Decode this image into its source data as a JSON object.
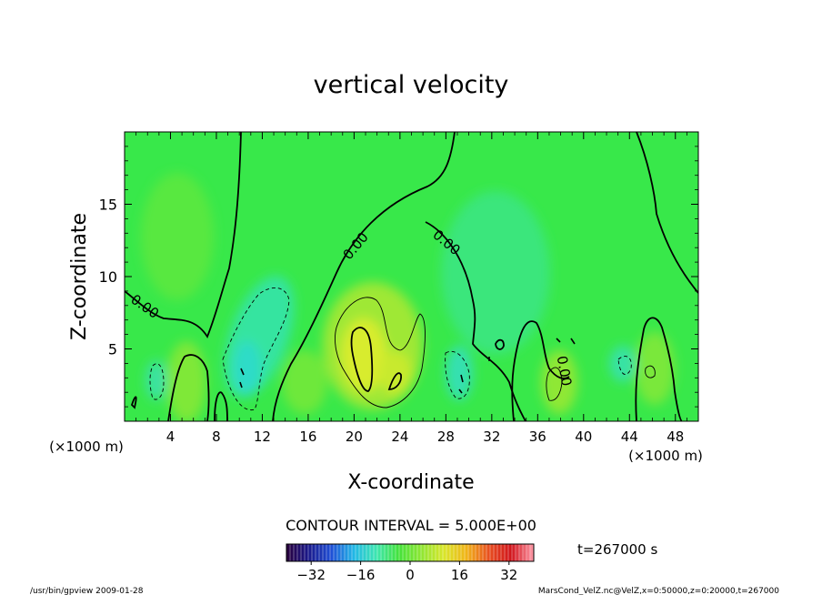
{
  "chart_data": {
    "type": "heatmap",
    "title": "vertical velocity",
    "xlabel": "X-coordinate",
    "ylabel": "Z-coordinate",
    "x_unit": "(×1000 m)",
    "x_ticks": [
      4,
      8,
      12,
      16,
      20,
      24,
      28,
      32,
      36,
      40,
      44,
      48
    ],
    "y_ticks": [
      5,
      10,
      15
    ],
    "xlim": [
      0,
      50
    ],
    "ylim": [
      0,
      20
    ],
    "contour_interval": "CONTOUR INTERVAL = 5.000E+00",
    "contour_label": "0.00",
    "colorbar": {
      "ticks": [
        -32,
        -16,
        0,
        16,
        32
      ],
      "range": [
        -40,
        40
      ],
      "colors": [
        "#2a003c",
        "#1a1a8c",
        "#1f4fd6",
        "#22b8e6",
        "#3ee6b0",
        "#44e23a",
        "#8fe633",
        "#d9e62a",
        "#f0b418",
        "#e85020",
        "#d0141c",
        "#ff9aa8"
      ]
    },
    "time_label": "t=267000 s",
    "footer_left": "/usr/bin/gpview   2009-01-28",
    "footer_right": "MarsCond_VelZ.nc@VelZ,x=0:50000,z=0:20000,t=267000",
    "field_colors": {
      "background": "#38e84a",
      "weak_up": "#66ea3a",
      "up": "#a8e832",
      "strong_up": "#d8ec2e",
      "down": "#35e6a8",
      "strong_down": "#2fdcc8"
    }
  }
}
